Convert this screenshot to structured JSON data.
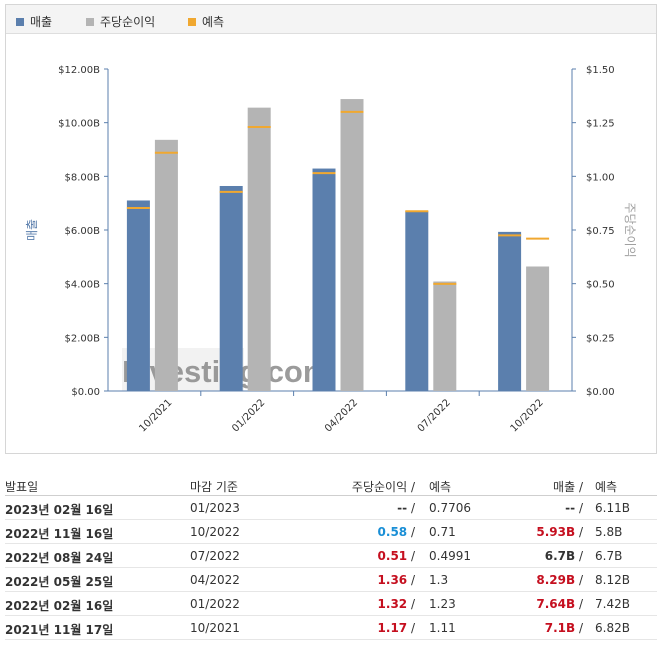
{
  "legend": {
    "items": [
      {
        "label": "매출",
        "color": "#5b7fad"
      },
      {
        "label": "주당순이익",
        "color": "#b4b4b4"
      },
      {
        "label": "예측",
        "color": "#f0a830"
      }
    ]
  },
  "chart_data": {
    "type": "bar",
    "title": "",
    "categories": [
      "10/2021",
      "01/2022",
      "04/2022",
      "07/2022",
      "10/2022"
    ],
    "y_left": {
      "label": "매출",
      "ticks": [
        "$0.00",
        "$2.00B",
        "$4.00B",
        "$6.00B",
        "$8.00B",
        "$10.00B",
        "$12.00B"
      ],
      "range": [
        0,
        12
      ]
    },
    "y_right": {
      "label": "주당순이익",
      "ticks": [
        "$0.00",
        "$0.25",
        "$0.50",
        "$0.75",
        "$1.00",
        "$1.25",
        "$1.50"
      ],
      "range": [
        0,
        1.5
      ]
    },
    "series": [
      {
        "name": "매출",
        "axis": "left",
        "values": [
          7.1,
          7.64,
          8.29,
          6.7,
          5.93
        ],
        "forecast": [
          6.82,
          7.42,
          8.12,
          6.7,
          5.8
        ]
      },
      {
        "name": "주당순이익",
        "axis": "right",
        "values": [
          1.17,
          1.32,
          1.36,
          0.51,
          0.58
        ],
        "forecast": [
          1.11,
          1.23,
          1.3,
          0.4991,
          0.71
        ]
      }
    ],
    "grid": false,
    "legend_position": "top-left",
    "watermark": "Investing.com"
  },
  "table": {
    "headers": {
      "date": "발표일",
      "period": "마감 기준",
      "eps": "주당순이익",
      "sep": "/",
      "eps_forecast": "예측",
      "revenue": "매출",
      "rev_forecast": "예측"
    },
    "rows": [
      {
        "date": "2023년 02월 16일",
        "period": "01/2023",
        "eps": "--",
        "eps_color": "dark",
        "eps_forecast": "0.7706",
        "revenue": "--",
        "rev_color": "dark",
        "rev_forecast": "6.11B"
      },
      {
        "date": "2022년 11월 16일",
        "period": "10/2022",
        "eps": "0.58",
        "eps_color": "blue",
        "eps_forecast": "0.71",
        "revenue": "5.93B",
        "rev_color": "red",
        "rev_forecast": "5.8B"
      },
      {
        "date": "2022년 08월 24일",
        "period": "07/2022",
        "eps": "0.51",
        "eps_color": "red",
        "eps_forecast": "0.4991",
        "revenue": "6.7B",
        "rev_color": "dark",
        "rev_forecast": "6.7B"
      },
      {
        "date": "2022년 05월 25일",
        "period": "04/2022",
        "eps": "1.36",
        "eps_color": "red",
        "eps_forecast": "1.3",
        "revenue": "8.29B",
        "rev_color": "red",
        "rev_forecast": "8.12B"
      },
      {
        "date": "2022년 02월 16일",
        "period": "01/2022",
        "eps": "1.32",
        "eps_color": "red",
        "eps_forecast": "1.23",
        "revenue": "7.64B",
        "rev_color": "red",
        "rev_forecast": "7.42B"
      },
      {
        "date": "2021년 11월 17일",
        "period": "10/2021",
        "eps": "1.17",
        "eps_color": "red",
        "eps_forecast": "1.11",
        "revenue": "7.1B",
        "rev_color": "red",
        "rev_forecast": "6.82B"
      }
    ]
  }
}
